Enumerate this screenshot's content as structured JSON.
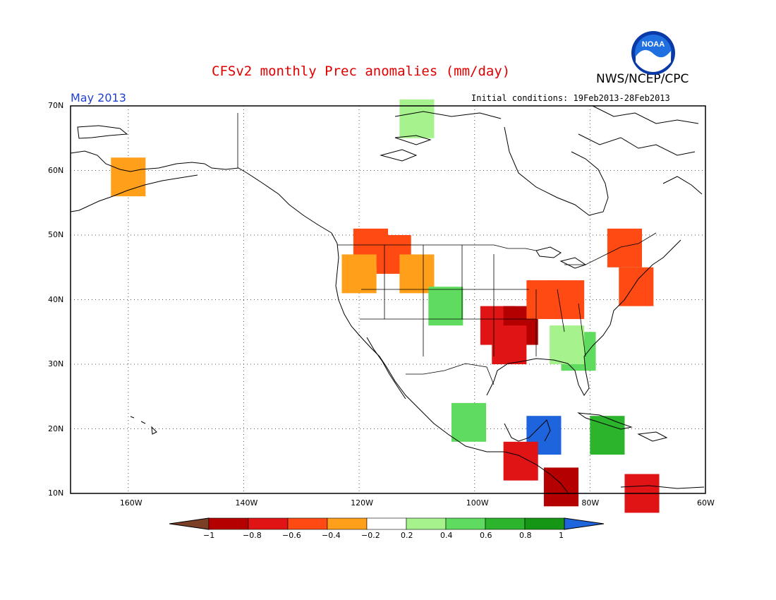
{
  "header": {
    "title": "CFSv2 monthly Prec anomalies (mm/day)",
    "agency": "NWS/NCEP/CPC",
    "logo_text": "NOAA",
    "month": "May 2013",
    "initial_conditions": "Initial conditions: 19Feb2013-28Feb2013"
  },
  "map": {
    "lon_range": [
      -170,
      -60
    ],
    "lat_range": [
      10,
      70
    ],
    "lat_labels": [
      "10N",
      "20N",
      "30N",
      "40N",
      "50N",
      "60N",
      "70N"
    ],
    "lon_labels": [
      "160W",
      "140W",
      "120W",
      "100W",
      "80W",
      "60W"
    ],
    "gridlines": "dotted",
    "anomaly_cells": [
      {
        "lon": -118,
        "lat": 48,
        "value": -0.5
      },
      {
        "lon": -114,
        "lat": 47,
        "value": -0.6
      },
      {
        "lon": -120,
        "lat": 44,
        "value": -0.3
      },
      {
        "lon": -110,
        "lat": 44,
        "value": -0.4
      },
      {
        "lon": -96,
        "lat": 36,
        "value": -0.8
      },
      {
        "lon": -92,
        "lat": 36,
        "value": -0.9
      },
      {
        "lon": -94,
        "lat": 33,
        "value": -0.8
      },
      {
        "lon": -88,
        "lat": 40,
        "value": -0.6
      },
      {
        "lon": -84,
        "lat": 40,
        "value": -0.5
      },
      {
        "lon": -74,
        "lat": 48,
        "value": -0.5
      },
      {
        "lon": -72,
        "lat": 42,
        "value": -0.6
      },
      {
        "lon": -82,
        "lat": 32,
        "value": 0.4
      },
      {
        "lon": -84,
        "lat": 33,
        "value": 0.3
      },
      {
        "lon": -105,
        "lat": 39,
        "value": 0.5
      },
      {
        "lon": -101,
        "lat": 21,
        "value": 0.5
      },
      {
        "lon": -88,
        "lat": 19,
        "value": 1.0
      },
      {
        "lon": -92,
        "lat": 15,
        "value": -0.8
      },
      {
        "lon": -85,
        "lat": 11,
        "value": -1.0
      },
      {
        "lon": -71,
        "lat": 10,
        "value": -0.8
      },
      {
        "lon": -77,
        "lat": 19,
        "value": 0.6
      },
      {
        "lon": -110,
        "lat": 68,
        "value": 0.3
      },
      {
        "lon": -160,
        "lat": 59,
        "value": -0.3
      }
    ]
  },
  "colorbar": {
    "labels": [
      "−1",
      "−0.8",
      "−0.6",
      "−0.4",
      "−0.2",
      "0.2",
      "0.4",
      "0.6",
      "0.8",
      "1"
    ],
    "colors": [
      "#7a3f24",
      "#b40000",
      "#e01414",
      "#ff4a14",
      "#ff9f1a",
      "#ffffff",
      "#a6f28c",
      "#5fdc5f",
      "#2db42d",
      "#159615",
      "#1e64dc"
    ]
  }
}
